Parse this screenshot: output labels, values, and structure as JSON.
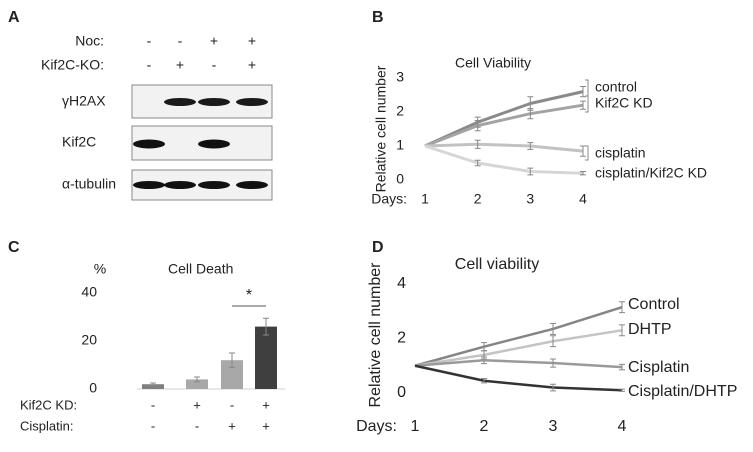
{
  "panel_letters": [
    "A",
    "B",
    "C",
    "D"
  ],
  "blot": {
    "conditions": [
      {
        "label": "Noc:",
        "values": [
          "-",
          "-",
          "+",
          "+"
        ]
      },
      {
        "label": "Kif2C-KO:",
        "values": [
          "-",
          "+",
          "-",
          "+"
        ]
      }
    ],
    "bands": [
      "γH2AX",
      "Kif2C",
      "α-tubulin"
    ]
  },
  "chart_data": [
    {
      "type": "line",
      "title": "Cell Viability",
      "y_label": "Relative cell number",
      "x_label": "Days:",
      "x": [
        1,
        2,
        3,
        4
      ],
      "xlim": [
        1,
        4
      ],
      "xticks": [
        1,
        2,
        3,
        4
      ],
      "ylim": [
        0,
        3
      ],
      "yticks": [
        0,
        1,
        2,
        3
      ],
      "grid": false,
      "series": [
        {
          "name": "control",
          "color": "#8a8a8a",
          "values": [
            1,
            1.7,
            2.25,
            2.6
          ],
          "errors": [
            0,
            0.15,
            0.2,
            0.15
          ]
        },
        {
          "name": "Kif2C KD",
          "color": "#a3a3a3",
          "values": [
            1,
            1.6,
            1.95,
            2.2
          ],
          "errors": [
            0,
            0.15,
            0.15,
            0.12
          ]
        },
        {
          "name": "cisplatin",
          "color": "#c2c2c2",
          "values": [
            1,
            1.05,
            1.0,
            0.85
          ],
          "errors": [
            0,
            0.12,
            0.1,
            0.15
          ]
        },
        {
          "name": "cisplatin/Kif2C KD",
          "color": "#d6d6d6",
          "values": [
            1,
            0.5,
            0.25,
            0.2
          ],
          "errors": [
            0,
            0.08,
            0.1,
            0.05
          ]
        }
      ]
    },
    {
      "type": "bar",
      "title": "Cell Death",
      "y_label": "%",
      "categories": [
        null,
        null,
        null,
        null
      ],
      "ylim": [
        0,
        40
      ],
      "yticks": [
        0,
        20,
        40
      ],
      "values": [
        2,
        4,
        12,
        26
      ],
      "errors": [
        0.5,
        1,
        3,
        3.5
      ],
      "colors": [
        "#7f7f7f",
        "#a8a8a8",
        "#a8a8a8",
        "#3f3f3f"
      ],
      "conditions": [
        {
          "label": "Kif2C KD:",
          "values": [
            "-",
            "+",
            "-",
            "+"
          ]
        },
        {
          "label": "Cisplatin:",
          "values": [
            "-",
            "-",
            "+",
            "+"
          ]
        }
      ],
      "annotation": "*"
    },
    {
      "type": "line",
      "title": "Cell viability",
      "y_label": "Relative cell number",
      "x_label": "Days:",
      "x": [
        1,
        2,
        3,
        4
      ],
      "xlim": [
        1,
        4
      ],
      "xticks": [
        1,
        2,
        3,
        4
      ],
      "ylim": [
        0,
        4
      ],
      "yticks": [
        0,
        2,
        4
      ],
      "grid": false,
      "series": [
        {
          "name": "Control",
          "color": "#858585",
          "values": [
            1,
            1.7,
            2.35,
            3.15
          ],
          "errors": [
            0,
            0.15,
            0.2,
            0.2
          ]
        },
        {
          "name": "DHTP",
          "color": "#c4c4c4",
          "values": [
            1,
            1.4,
            1.9,
            2.3
          ],
          "errors": [
            0,
            0.15,
            0.2,
            0.2
          ]
        },
        {
          "name": "Cisplatin",
          "color": "#9a9a9a",
          "values": [
            1,
            1.2,
            1.1,
            0.95
          ],
          "errors": [
            0,
            0.12,
            0.15,
            0.1
          ]
        },
        {
          "name": "Cisplatin/DHTP",
          "color": "#333333",
          "values": [
            1,
            0.45,
            0.2,
            0.1
          ],
          "errors": [
            0,
            0.08,
            0.12,
            0.04
          ]
        }
      ]
    }
  ]
}
